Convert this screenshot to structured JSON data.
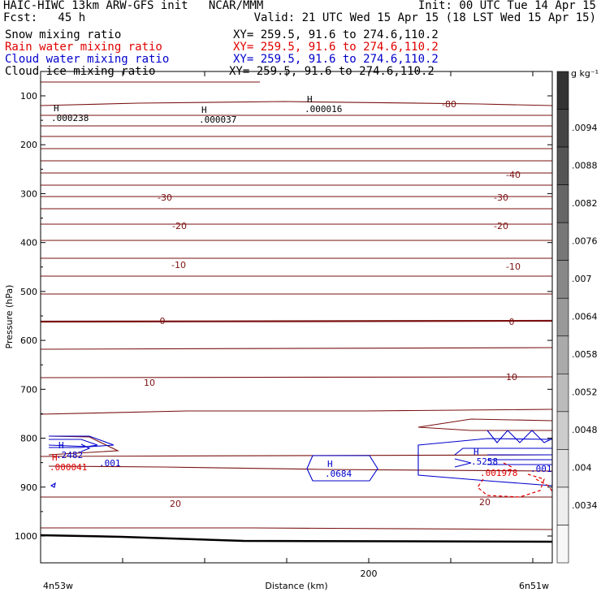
{
  "header": {
    "line1_left": "HAIC-HIWC 13km ARW-GFS init   NCAR/MMM",
    "line1_right": "Init: 00 UTC Tue 14 Apr 15",
    "line2_left": "Fcst:   45 h",
    "line2_right": "Valid: 21 UTC Wed 15 Apr 15 (18 LST Wed 15 Apr 15)",
    "fields": [
      {
        "name": "Snow mixing ratio",
        "xy": "XY= 259.5, 91.6 to 274.6,110.2",
        "color": "#000000"
      },
      {
        "name": "Rain water mixing ratio",
        "xy": "XY= 259.5, 91.6 to 274.6,110.2",
        "color": "#e00000"
      },
      {
        "name": "Cloud water mixing ratio",
        "xy": "XY= 259.5, 91.6 to 274.6,110.2",
        "color": "#0000cc"
      },
      {
        "name": "Cloud ice mixing ratio",
        "xy": "XY= 259.5, 91.6 to 274.6,110.2",
        "color": "#000000"
      }
    ]
  },
  "chart_data": {
    "type": "contour-cross-section",
    "ylabel": "Pressure (hPa)",
    "xlabel": "Distance (km)",
    "y_ticks": [
      100,
      200,
      300,
      400,
      500,
      600,
      700,
      800,
      900,
      1000
    ],
    "x_ticks": [
      200
    ],
    "x_start_label": "4n53w",
    "x_end_label": "6n51w",
    "temperature_contour_labels": [
      "-80",
      "-40",
      "-30",
      "-30",
      "-20",
      "-20",
      "-10",
      "-10",
      "0",
      "0",
      "10",
      "10",
      "20",
      "20"
    ],
    "maxima_labels": [
      {
        "mark": "H",
        "value": ".000238"
      },
      {
        "mark": "H",
        "value": ".000037"
      },
      {
        "mark": "H",
        "value": ".000016"
      },
      {
        "mark": "H",
        "value": ".2482"
      },
      {
        "mark": "H",
        "value": ".000041"
      },
      {
        "mark": "",
        "value": ".001"
      },
      {
        "mark": "H",
        "value": ".0684"
      },
      {
        "mark": "H",
        "value": ".5258"
      },
      {
        "mark": "",
        "value": ".001978"
      },
      {
        "mark": "",
        "value": ".001"
      }
    ],
    "colorbar": {
      "unit": "g kg⁻¹",
      "labels": [
        ".0094",
        ".0088",
        ".0082",
        ".0076",
        ".007",
        ".0064",
        ".0058",
        ".0052",
        ".0048",
        ".004",
        ".0034"
      ],
      "shades": [
        "#333333",
        "#444444",
        "#555555",
        "#666666",
        "#777777",
        "#888888",
        "#999999",
        "#aaaaaa",
        "#bbbbbb",
        "#cccccc",
        "#dddddd",
        "#eeeeee",
        "#f7f7f7"
      ]
    },
    "colors": {
      "isotherm": "#7a1010",
      "cloud_water": "#0000cc",
      "rain": "#e00000",
      "ground": "#000000"
    }
  }
}
